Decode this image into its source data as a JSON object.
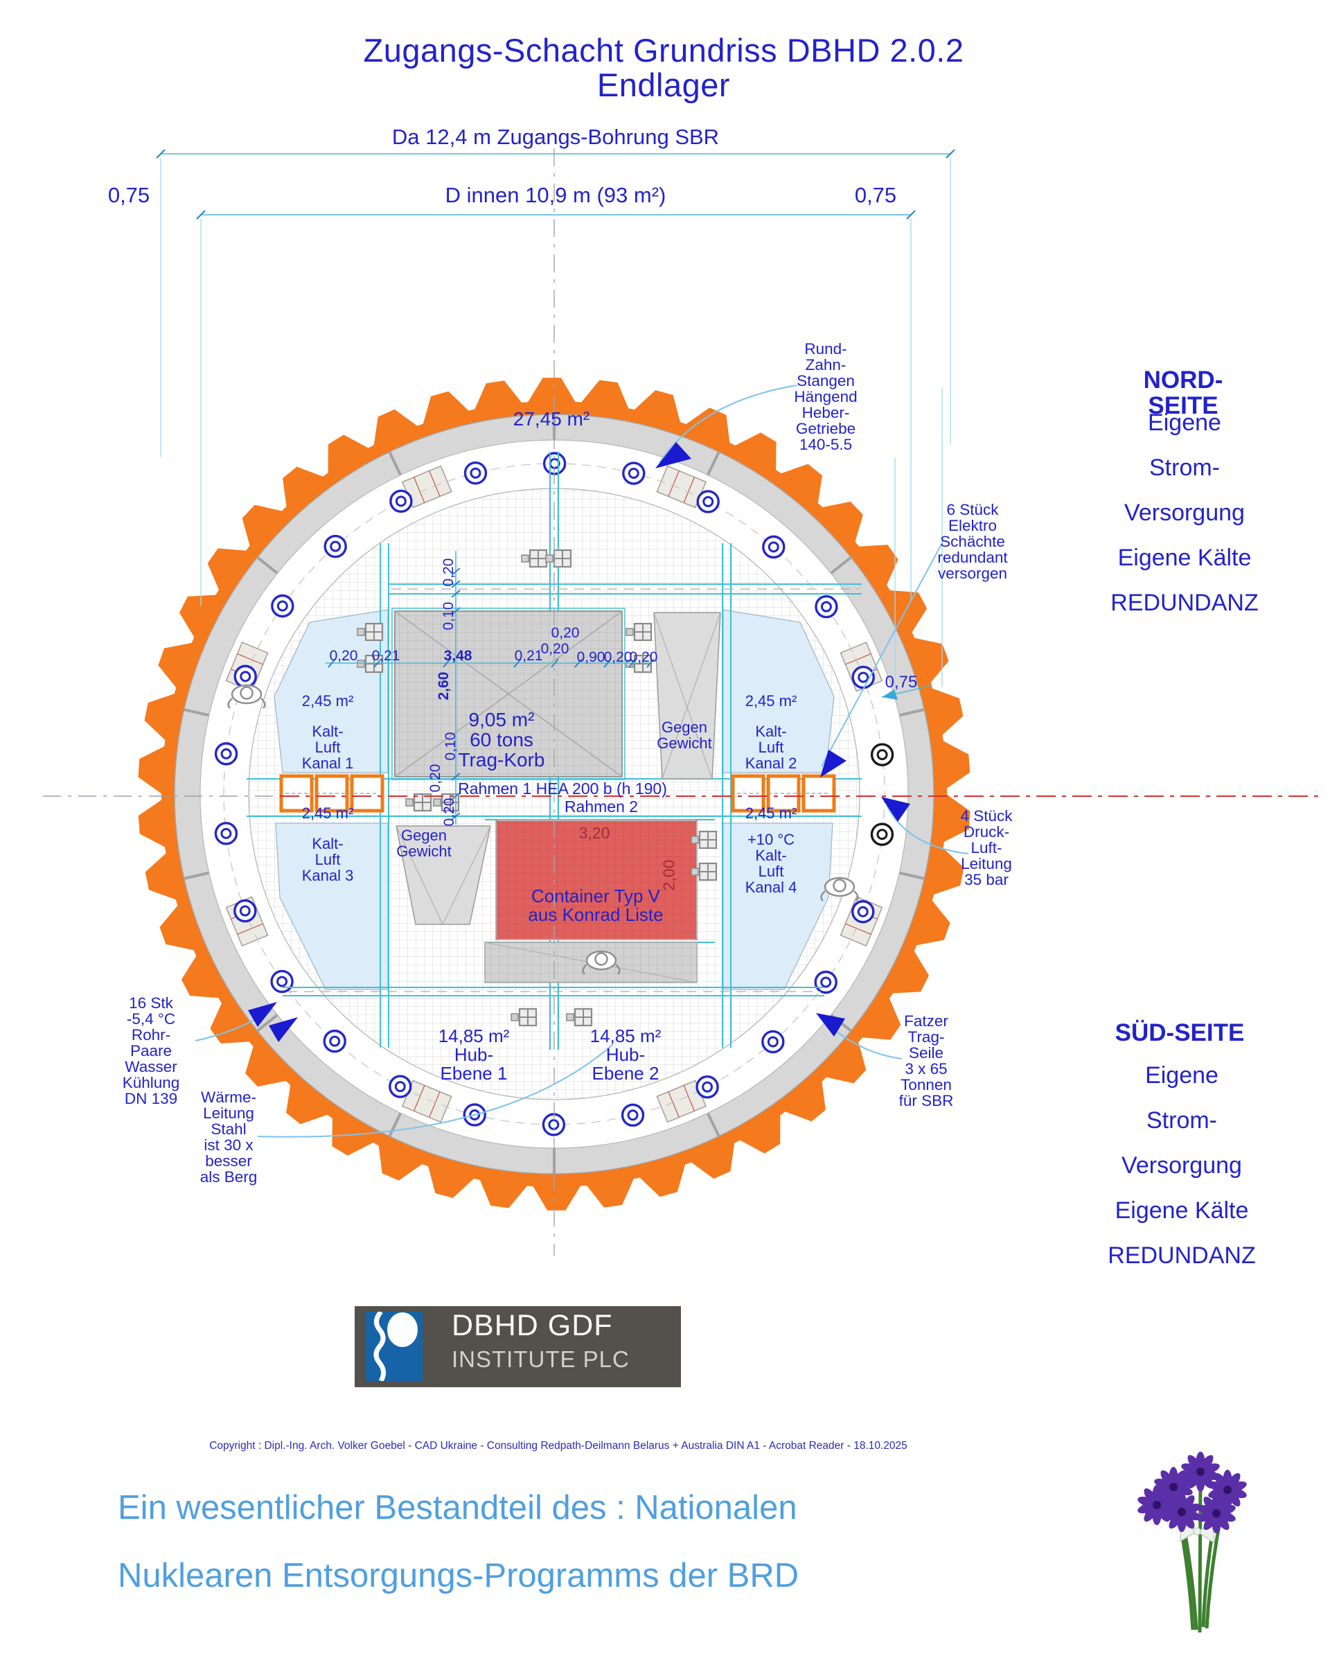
{
  "title": "Zugangs-Schacht Grundriss DBHD 2.0.2 Endlager",
  "top_dimensions": {
    "outer": "Da 12,4 m Zugangs-Bohrung SBR",
    "inner": "D innen 10,9 m (93 m²)",
    "offset_left": "0,75",
    "offset_right": "0,75"
  },
  "sides": {
    "north": {
      "heading": "NORD-SEITE",
      "body": "Eigene Strom-\nVersorgung\nEigene Kälte\nREDUNDANZ"
    },
    "south": {
      "heading": "SÜD-SEITE",
      "body": "Eigene Strom-\nVersorgung\nEigene Kälte\nREDUNDANZ"
    }
  },
  "callouts": {
    "rack": "Rund-\nZahn-\nStangen\nHängend\nHeber-\nGetriebe\n140-5.5",
    "elektro": "6 Stück\nElektro\nSchächte\nredundant\nversorgen",
    "druckluft": "4 Stück\nDruck-\nLuft-\nLeitung\n35 bar",
    "fatzer": "Fatzer\nTrag-\nSeile\n3 x 65\nTonnen\nfür SBR",
    "kuehlung": "16 Stk\n-5,4 °C\nRohr-\nPaare\nWasser\nKühlung\nDN 139",
    "waerme": "Wärme-\nLeitung\nStahl\nist 30 x\nbesser\nals Berg"
  },
  "plan": {
    "ring_area": "27,45 m²",
    "kanal1_area": "2,45 m²",
    "kanal1": "Kalt-\nLuft\nKanal 1",
    "kanal2_area": "2,45 m²",
    "kanal2": "Kalt-\nLuft\nKanal 2",
    "kanal3_area": "2,45 m²",
    "kanal3": "Kalt-\nLuft\nKanal 3",
    "kanal4_area": "2,45 m²",
    "kanal4": "+10 °C\nKalt-\nLuft\nKanal 4",
    "trag_korb": "9,05 m²\n60 tons\nTrag-Korb",
    "gg_top": "Gegen\nGewicht",
    "gg_bottom": "Gegen\nGewicht",
    "rahmen1": "Rahmen 1 HEA 200 b (h 190)",
    "rahmen2": "Rahmen 2",
    "container": "Container Typ V\naus Konrad Liste",
    "hub1": "14,85 m²\nHub-\nEbene 1",
    "hub2": "14,85 m²\nHub-\nEbene 2"
  },
  "dims": {
    "row": [
      "0,20",
      "0,21",
      "3,48",
      "0,21",
      "0,20",
      "0,20",
      "0,90",
      "0,20",
      "0,20"
    ],
    "col": [
      "0,20",
      "0,10",
      "2,60",
      "0,10",
      "0,20",
      "0,20"
    ],
    "wall": "0,75",
    "container_w": "3,20",
    "container_h": "2,00"
  },
  "footer": {
    "logo_title": "DBHD GDF",
    "logo_subtitle": "INSTITUTE PLC",
    "copyright": "Copyright : Dipl.-Ing. Arch. Volker Goebel - CAD Ukraine - Consulting Redpath-Deilmann Belarus + Australia  DIN A1 - Acrobat Reader - 18.10.2025",
    "slogan_line1": "Ein wesentlicher Bestandteil des : Nationalen",
    "slogan_line2": "Nuklearen Entsorgungs-Programms der BRD"
  },
  "colors": {
    "text_blue": "#2222cc",
    "orange_ring": "#f5791d",
    "container_red": "#e0605d",
    "channel_blue": "#dcecf8",
    "cyan_line": "#3fc0d6",
    "red_centerline": "#d23030",
    "slogan_blue": "#4f9fe0"
  }
}
